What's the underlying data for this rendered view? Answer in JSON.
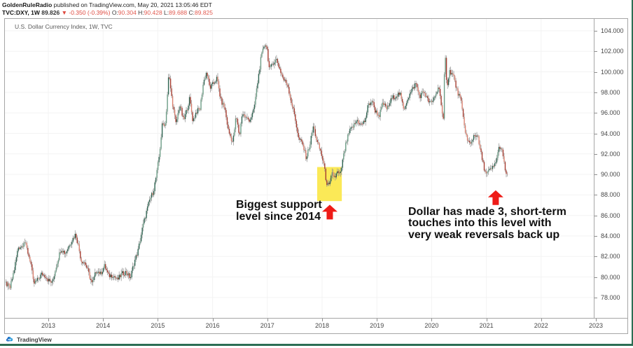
{
  "header": {
    "publisher": "GoldenRuleRadio",
    "published_suffix": " published on TradingView.com, May 20, 2021 13:05:46 EDT",
    "symbol": "TVC:DXY, 1W",
    "last_price": "89.826",
    "change": "▼ -0.350 (-0.39%)",
    "ohlc": [
      {
        "label": "O:",
        "value": "90.304"
      },
      {
        "label": "H:",
        "value": "90.428"
      },
      {
        "label": "L:",
        "value": "89.688"
      },
      {
        "label": "C:",
        "value": "89.825"
      }
    ]
  },
  "chart": {
    "title": "U.S. Dollar Currency Index, 1W, TVC"
  },
  "annotations": {
    "left_note": "Biggest support\nlevel since 2014",
    "right_note": "Dollar has made 3, short-term\ntouches into this level with\nvery weak reversals back up"
  },
  "footer": {
    "brand": "TradingView"
  },
  "colors": {
    "up_body": "#2e6451",
    "up_light": "#6b9c85",
    "down_body": "#a63d31",
    "down_light": "#d9806f",
    "wick": "#909090",
    "grid": "#f3f3f3",
    "highlight": "#fbe84e",
    "arrow": "#ee1b17",
    "edge_green": "#2c6e54",
    "frame_border": "#a6a6a6"
  },
  "drawings": {
    "highlight_box": {
      "t1": 2017.91,
      "t2": 2018.36,
      "p1": 90.72,
      "p2": 87.4
    },
    "arrows": [
      {
        "t": 2018.14,
        "p_tip": 87.05
      },
      {
        "t": 2021.17,
        "p_tip": 88.45
      }
    ]
  },
  "chart_data": {
    "type": "candlestick",
    "title": "U.S. Dollar Currency Index, 1W, TVC",
    "symbol": "TVC:DXY",
    "timeframe": "1W",
    "last_ohlc": {
      "open": 90.304,
      "high": 90.428,
      "low": 89.688,
      "close": 89.825
    },
    "ylim": [
      76.0,
      105.2
    ],
    "y_ticks": [
      104,
      102,
      100,
      98,
      96,
      94,
      92,
      90,
      88,
      86,
      84,
      82,
      80,
      78
    ],
    "y_tick_format": "0.000",
    "x_ticks": [
      2013,
      2014,
      2015,
      2016,
      2017,
      2018,
      2019,
      2020,
      2021,
      2022,
      2023
    ],
    "grid": "faint",
    "note": "weekly candles; 'path' is the sampled close path [year_fraction, price] read from the chart",
    "path": [
      [
        2012.22,
        79.4
      ],
      [
        2012.3,
        78.9
      ],
      [
        2012.38,
        80.8
      ],
      [
        2012.45,
        82.9
      ],
      [
        2012.52,
        83.0
      ],
      [
        2012.56,
        83.6
      ],
      [
        2012.62,
        82.5
      ],
      [
        2012.68,
        81.4
      ],
      [
        2012.73,
        79.3
      ],
      [
        2012.8,
        79.7
      ],
      [
        2012.88,
        80.3
      ],
      [
        2012.95,
        80.1
      ],
      [
        2013.0,
        79.7
      ],
      [
        2013.07,
        79.4
      ],
      [
        2013.15,
        81.2
      ],
      [
        2013.23,
        82.8
      ],
      [
        2013.31,
        82.3
      ],
      [
        2013.4,
        83.3
      ],
      [
        2013.5,
        84.2
      ],
      [
        2013.55,
        83.0
      ],
      [
        2013.6,
        81.6
      ],
      [
        2013.67,
        81.4
      ],
      [
        2013.74,
        80.3
      ],
      [
        2013.8,
        79.3
      ],
      [
        2013.88,
        80.7
      ],
      [
        2013.95,
        80.3
      ],
      [
        2014.03,
        81.1
      ],
      [
        2014.1,
        80.1
      ],
      [
        2014.18,
        80.2
      ],
      [
        2014.26,
        79.7
      ],
      [
        2014.34,
        80.3
      ],
      [
        2014.42,
        80.5
      ],
      [
        2014.5,
        79.9
      ],
      [
        2014.56,
        81.3
      ],
      [
        2014.64,
        82.6
      ],
      [
        2014.72,
        84.8
      ],
      [
        2014.78,
        86.1
      ],
      [
        2014.85,
        87.5
      ],
      [
        2014.92,
        88.4
      ],
      [
        2014.98,
        90.1
      ],
      [
        2015.03,
        92.0
      ],
      [
        2015.08,
        94.8
      ],
      [
        2015.14,
        95.0
      ],
      [
        2015.2,
        99.8
      ],
      [
        2015.26,
        97.2
      ],
      [
        2015.33,
        94.9
      ],
      [
        2015.4,
        96.8
      ],
      [
        2015.47,
        95.2
      ],
      [
        2015.53,
        96.3
      ],
      [
        2015.58,
        97.4
      ],
      [
        2015.64,
        95.2
      ],
      [
        2015.7,
        96.1
      ],
      [
        2015.77,
        96.4
      ],
      [
        2015.83,
        98.9
      ],
      [
        2015.89,
        100.0
      ],
      [
        2015.95,
        98.4
      ],
      [
        2016.02,
        98.9
      ],
      [
        2016.08,
        99.4
      ],
      [
        2016.15,
        97.2
      ],
      [
        2016.22,
        96.5
      ],
      [
        2016.29,
        94.2
      ],
      [
        2016.37,
        93.1
      ],
      [
        2016.43,
        95.7
      ],
      [
        2016.49,
        93.7
      ],
      [
        2016.54,
        96.0
      ],
      [
        2016.61,
        95.5
      ],
      [
        2016.68,
        95.3
      ],
      [
        2016.75,
        96.2
      ],
      [
        2016.81,
        98.5
      ],
      [
        2016.88,
        101.2
      ],
      [
        2016.95,
        102.8
      ],
      [
        2016.99,
        102.4
      ],
      [
        2017.04,
        100.1
      ],
      [
        2017.1,
        100.9
      ],
      [
        2017.17,
        101.2
      ],
      [
        2017.23,
        100.2
      ],
      [
        2017.3,
        99.2
      ],
      [
        2017.37,
        98.8
      ],
      [
        2017.43,
        97.2
      ],
      [
        2017.5,
        95.7
      ],
      [
        2017.57,
        93.5
      ],
      [
        2017.64,
        93.0
      ],
      [
        2017.71,
        91.6
      ],
      [
        2017.78,
        93.0
      ],
      [
        2017.84,
        94.7
      ],
      [
        2017.91,
        93.1
      ],
      [
        2017.97,
        92.3
      ],
      [
        2018.03,
        91.0
      ],
      [
        2018.08,
        89.2
      ],
      [
        2018.13,
        88.8
      ],
      [
        2018.18,
        90.1
      ],
      [
        2018.23,
        89.7
      ],
      [
        2018.28,
        90.2
      ],
      [
        2018.33,
        89.9
      ],
      [
        2018.38,
        91.5
      ],
      [
        2018.44,
        93.1
      ],
      [
        2018.5,
        94.2
      ],
      [
        2018.57,
        94.7
      ],
      [
        2018.64,
        95.3
      ],
      [
        2018.71,
        94.8
      ],
      [
        2018.78,
        95.2
      ],
      [
        2018.84,
        96.7
      ],
      [
        2018.91,
        97.2
      ],
      [
        2018.97,
        96.2
      ],
      [
        2019.04,
        95.7
      ],
      [
        2019.11,
        96.9
      ],
      [
        2019.19,
        96.4
      ],
      [
        2019.27,
        97.4
      ],
      [
        2019.35,
        97.7
      ],
      [
        2019.42,
        97.9
      ],
      [
        2019.49,
        96.3
      ],
      [
        2019.56,
        97.4
      ],
      [
        2019.64,
        98.2
      ],
      [
        2019.71,
        98.9
      ],
      [
        2019.78,
        97.6
      ],
      [
        2019.86,
        98.1
      ],
      [
        2019.93,
        97.2
      ],
      [
        2020.0,
        96.9
      ],
      [
        2020.07,
        97.8
      ],
      [
        2020.14,
        98.6
      ],
      [
        2020.19,
        95.9
      ],
      [
        2020.22,
        95.0
      ],
      [
        2020.24,
        102.3
      ],
      [
        2020.28,
        98.6
      ],
      [
        2020.33,
        100.1
      ],
      [
        2020.4,
        99.6
      ],
      [
        2020.46,
        98.2
      ],
      [
        2020.53,
        97.3
      ],
      [
        2020.59,
        95.0
      ],
      [
        2020.65,
        93.3
      ],
      [
        2020.71,
        92.9
      ],
      [
        2020.77,
        93.8
      ],
      [
        2020.83,
        93.9
      ],
      [
        2020.89,
        92.3
      ],
      [
        2020.95,
        90.8
      ],
      [
        2021.0,
        90.0
      ],
      [
        2021.04,
        90.3
      ],
      [
        2021.09,
        90.5
      ],
      [
        2021.14,
        90.8
      ],
      [
        2021.19,
        91.6
      ],
      [
        2021.24,
        92.8
      ],
      [
        2021.28,
        92.4
      ],
      [
        2021.32,
        91.2
      ],
      [
        2021.35,
        90.3
      ],
      [
        2021.38,
        89.8
      ]
    ]
  }
}
